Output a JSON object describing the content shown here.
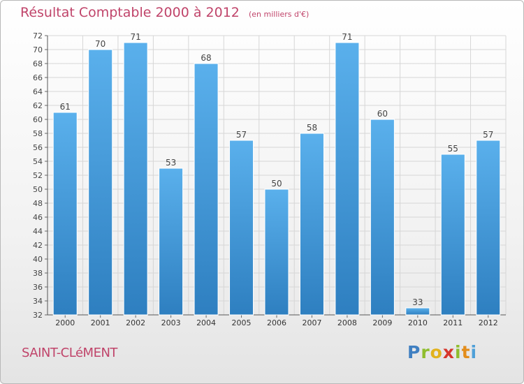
{
  "title": "Résultat Comptable 2000 à 2012",
  "unit": "(en milliers d'€)",
  "commune": "SAINT-CLéMENT",
  "brand": {
    "letters": [
      "P",
      "r",
      "o",
      "x",
      "i",
      "t",
      "i"
    ],
    "colors": [
      "#3f7fc1",
      "#8fbd2e",
      "#e2b21d",
      "#d6362c",
      "#8fbd2e",
      "#e38d1c",
      "#4fa0d8"
    ]
  },
  "colors": {
    "bar": "#4a9fe0",
    "bar_light": "#5ab0ec",
    "bar_dark": "#2e7fc0",
    "title": "#c0446a",
    "grid": "#d6d6d6"
  },
  "chart_data": {
    "type": "bar",
    "categories": [
      "2000",
      "2001",
      "2002",
      "2003",
      "2004",
      "2005",
      "2006",
      "2007",
      "2008",
      "2009",
      "2010",
      "2011",
      "2012"
    ],
    "values": [
      61,
      70,
      71,
      53,
      68,
      57,
      50,
      58,
      71,
      60,
      33,
      55,
      57
    ],
    "ylim": [
      32,
      72
    ],
    "yticks": [
      32,
      34,
      36,
      38,
      40,
      42,
      44,
      46,
      48,
      50,
      52,
      54,
      56,
      58,
      60,
      62,
      64,
      66,
      68,
      70,
      72
    ],
    "grid": true,
    "legend": "none"
  }
}
